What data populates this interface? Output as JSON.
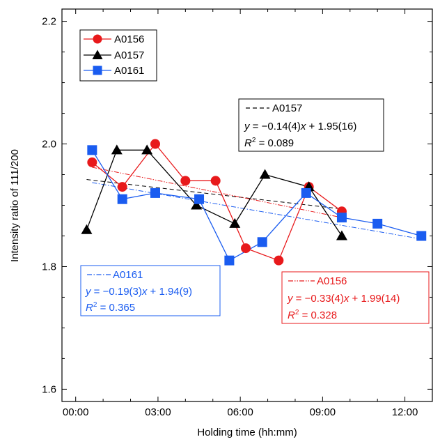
{
  "chart_data": {
    "type": "line",
    "xlabel": "Holding time (hh:mm)",
    "ylabel": "Intensity ratio of 111/200",
    "x_unit": "hours",
    "xlim": [
      -0.5,
      13.0
    ],
    "ylim": [
      1.58,
      2.22
    ],
    "x_ticks": [
      {
        "value": 0,
        "label": "00:00"
      },
      {
        "value": 3,
        "label": "03:00"
      },
      {
        "value": 6,
        "label": "06:00"
      },
      {
        "value": 9,
        "label": "09:00"
      },
      {
        "value": 12,
        "label": "12:00"
      }
    ],
    "y_ticks": [
      {
        "value": 1.6,
        "label": "1.6"
      },
      {
        "value": 1.8,
        "label": "1.8"
      },
      {
        "value": 2.0,
        "label": "2.0"
      },
      {
        "value": 2.2,
        "label": "2.2"
      }
    ],
    "legend_position": "top-left",
    "grid": false,
    "series": [
      {
        "name": "A0156",
        "color": "#e8191b",
        "marker": "circle",
        "points": [
          [
            0.6,
            1.97
          ],
          [
            1.7,
            1.93
          ],
          [
            2.9,
            2.0
          ],
          [
            4.0,
            1.94
          ],
          [
            5.1,
            1.94
          ],
          [
            6.2,
            1.83
          ],
          [
            7.4,
            1.81
          ],
          [
            8.5,
            1.93
          ],
          [
            9.7,
            1.89
          ]
        ]
      },
      {
        "name": "A0157",
        "color": "#000000",
        "marker": "triangle",
        "points": [
          [
            0.4,
            1.86
          ],
          [
            1.5,
            1.99
          ],
          [
            2.6,
            1.99
          ],
          [
            4.4,
            1.9
          ],
          [
            5.8,
            1.87
          ],
          [
            6.9,
            1.95
          ],
          [
            8.5,
            1.93
          ],
          [
            9.7,
            1.85
          ]
        ]
      },
      {
        "name": "A0161",
        "color": "#1a5cf0",
        "marker": "square",
        "points": [
          [
            0.6,
            1.99
          ],
          [
            1.7,
            1.91
          ],
          [
            2.9,
            1.92
          ],
          [
            4.5,
            1.91
          ],
          [
            5.6,
            1.81
          ],
          [
            6.8,
            1.84
          ],
          [
            8.4,
            1.92
          ],
          [
            9.7,
            1.88
          ],
          [
            11.0,
            1.87
          ],
          [
            12.6,
            1.85
          ]
        ]
      }
    ],
    "fits": [
      {
        "series": "A0157",
        "color": "#000000",
        "dash": "6,4",
        "x_range": [
          0.4,
          9.7
        ],
        "y_range": [
          1.942,
          1.894
        ]
      },
      {
        "series": "A0156",
        "color": "#e8191b",
        "dash": "7,2,1.5,2,1.5,2",
        "x_range": [
          0.6,
          9.7
        ],
        "y_range": [
          1.962,
          1.88
        ]
      },
      {
        "series": "A0161",
        "color": "#1a5cf0",
        "dash": "7,2.5,1.5,2.5",
        "x_range": [
          0.6,
          12.6
        ],
        "y_range": [
          1.937,
          1.845
        ]
      }
    ],
    "legend": [
      {
        "name": "A0156",
        "color": "#e8191b",
        "marker": "circle"
      },
      {
        "name": "A0157",
        "color": "#000000",
        "marker": "triangle"
      },
      {
        "name": "A0161",
        "color": "#1a5cf0",
        "marker": "square"
      }
    ],
    "annotations": [
      {
        "id": "a0157",
        "color": "#000000",
        "dash": "6,4",
        "label": "A0157",
        "eq_prefix": "y",
        "eq_a": " = −0.14(4)",
        "eq_x": "x",
        "eq_b": " + 1.95(16)",
        "r2_prefix": "R",
        "r2_sup": "2",
        "r2_value": " = 0.089"
      },
      {
        "id": "a0161",
        "color": "#1a5cf0",
        "dash": "7,2.5,1.5,2.5",
        "label": "A0161",
        "eq_prefix": "y",
        "eq_a": " = −0.19(3)",
        "eq_x": "x",
        "eq_b": " + 1.94(9)",
        "r2_prefix": "R",
        "r2_sup": "2",
        "r2_value": " = 0.365"
      },
      {
        "id": "a0156",
        "color": "#e8191b",
        "dash": "7,2,1.5,2,1.5,2",
        "label": "A0156",
        "eq_prefix": "y",
        "eq_a": " = −0.33(4)",
        "eq_x": "x",
        "eq_b": " + 1.99(14)",
        "r2_prefix": "R",
        "r2_sup": "2",
        "r2_value": " = 0.328"
      }
    ]
  }
}
